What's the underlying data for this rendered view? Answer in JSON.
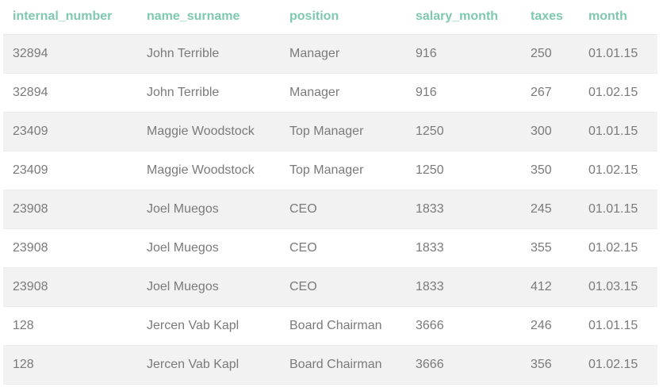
{
  "table": {
    "columns": [
      "internal_number",
      "name_surname",
      "position",
      "salary_month",
      "taxes",
      "month"
    ],
    "rows": [
      [
        "32894",
        "John Terrible",
        "Manager",
        "916",
        "250",
        "01.01.15"
      ],
      [
        "32894",
        "John Terrible",
        "Manager",
        "916",
        "267",
        "01.02.15"
      ],
      [
        "23409",
        "Maggie Woodstock",
        "Top Manager",
        "1250",
        "300",
        "01.01.15"
      ],
      [
        "23409",
        "Maggie Woodstock",
        "Top Manager",
        "1250",
        "350",
        "01.02.15"
      ],
      [
        "23908",
        "Joel Muegos",
        "CEO",
        "1833",
        "245",
        "01.01.15"
      ],
      [
        "23908",
        "Joel Muegos",
        "CEO",
        "1833",
        "355",
        "01.02.15"
      ],
      [
        "23908",
        "Joel Muegos",
        "CEO",
        "1833",
        "412",
        "01.03.15"
      ],
      [
        "128",
        "Jercen Vab Kapl",
        "Board Chairman",
        "3666",
        "246",
        "01.01.15"
      ],
      [
        "128",
        "Jercen Vab Kapl",
        "Board Chairman",
        "3666",
        "356",
        "01.02.15"
      ]
    ]
  },
  "colors": {
    "header_text": "#7ec8b0",
    "cell_text": "#7a7a7a",
    "row_stripe": "#f2f2f2"
  }
}
